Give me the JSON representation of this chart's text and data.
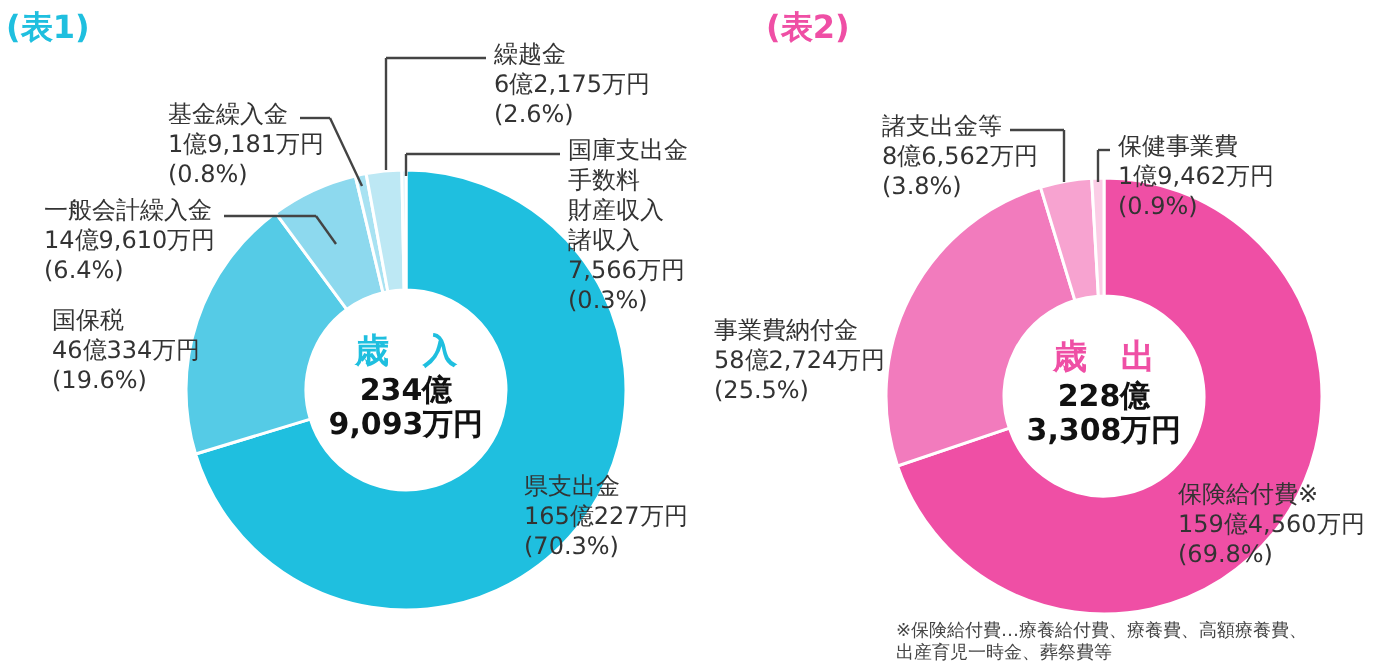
{
  "chart_data": [
    {
      "type": "donut",
      "title": "(表1)",
      "categories": [
        "県支出金",
        "国保税",
        "一般会計繰入金",
        "基金繰入金",
        "繰越金",
        "国庫支出金手数料財産収入諸収入"
      ],
      "values": [
        70.3,
        19.6,
        6.4,
        0.8,
        2.6,
        0.3
      ],
      "value_labels": [
        "165億227万円\n(70.3%)",
        "46億334万円\n(19.6%)",
        "14億9,610万円\n(6.4%)",
        "1億9,181万円\n(0.8%)",
        "6億2,175万円\n(2.6%)",
        "7,566万円\n(0.3%)"
      ],
      "colors": [
        "#1fbfdf",
        "#55cbe6",
        "#8dd9ee",
        "#a8e2f2",
        "#bde8f4",
        "#d3eff8"
      ],
      "annotations": [
        "歳　入",
        "234億\n9,093万円"
      ]
    },
    {
      "type": "donut",
      "title": "(表2)",
      "categories": [
        "保険給付費※",
        "事業費納付金",
        "諸支出金等",
        "保健事業費"
      ],
      "values": [
        69.8,
        25.5,
        3.8,
        0.9
      ],
      "value_labels": [
        "159億4,560万円\n(69.8%)",
        "58億2,724万円\n(25.5%)",
        "8億6,562万円\n(3.8%)",
        "1億9,462万円\n(0.9%)"
      ],
      "colors": [
        "#ef4fa5",
        "#f27bbd",
        "#f7a3d0",
        "#fbcde6"
      ],
      "annotations": [
        "歳　出",
        "228億\n3,308万円",
        "※保険給付費…療養給付費、療養費、高額療養費、出産育児一時金、葬祭費等"
      ]
    }
  ]
}
